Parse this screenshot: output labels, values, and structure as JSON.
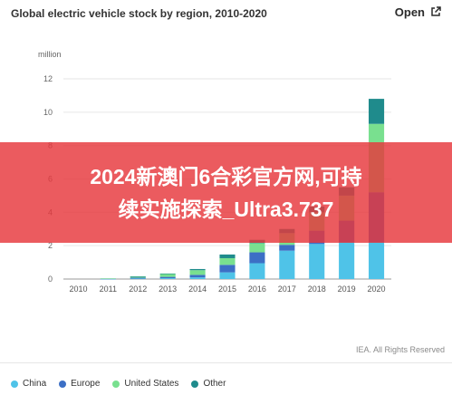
{
  "header": {
    "title": "Global electric vehicle stock by region, 2010-2020",
    "open_label": "Open",
    "open_icon": "external-link-icon"
  },
  "overlay": {
    "line1": "2024新澳门6合彩官方网,可持",
    "line2": "续实施探索_Ultra3.737"
  },
  "footer": {
    "credit": "IEA. All Rights Reserved"
  },
  "chart_data": {
    "type": "bar",
    "stacked": true,
    "ylabel": "million",
    "ylim": [
      0,
      12
    ],
    "yticks": [
      0,
      2,
      4,
      6,
      8,
      10,
      12
    ],
    "grid": true,
    "legend_position": "bottom",
    "categories": [
      "2010",
      "2011",
      "2012",
      "2013",
      "2014",
      "2015",
      "2016",
      "2017",
      "2018",
      "2019",
      "2020"
    ],
    "series": [
      {
        "name": "China",
        "color": "#4fc3e8",
        "values": [
          0.0,
          0.01,
          0.03,
          0.05,
          0.1,
          0.4,
          0.95,
          1.7,
          2.1,
          2.2,
          2.2
        ]
      },
      {
        "name": "Europe",
        "color": "#3c6fc5",
        "values": [
          0.0,
          0.01,
          0.05,
          0.08,
          0.15,
          0.45,
          0.65,
          0.35,
          0.8,
          1.3,
          3.0
        ]
      },
      {
        "name": "United States",
        "color": "#79e08f",
        "values": [
          0.0,
          0.02,
          0.07,
          0.17,
          0.28,
          0.4,
          0.55,
          0.7,
          1.1,
          1.5,
          4.1
        ]
      },
      {
        "name": "Other",
        "color": "#1f8b8c",
        "values": [
          0.0,
          0.0,
          0.01,
          0.03,
          0.07,
          0.22,
          0.2,
          0.25,
          0.35,
          0.5,
          1.5
        ]
      }
    ]
  }
}
